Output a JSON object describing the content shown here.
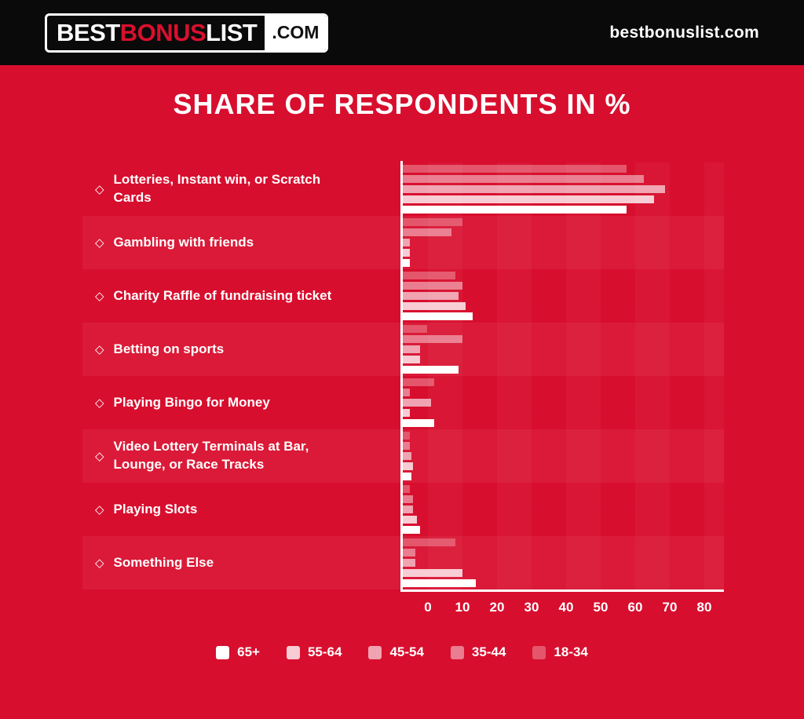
{
  "header": {
    "logo": {
      "part1": "BEST",
      "part2": "BONUS",
      "part3": "LIST",
      "suffix": ".COM"
    },
    "site_url": "bestbonuslist.com"
  },
  "title": "SHARE OF RESPONDENTS IN %",
  "bullet": "◇",
  "colors": {
    "background": "#d80e2e",
    "header_bg": "#0a0a0a",
    "accent_red": "#d8102e",
    "axis": "#ffffff",
    "row_band": "rgba(255,255,255,0.05)"
  },
  "chart_data": {
    "type": "bar",
    "orientation": "horizontal",
    "title": "SHARE OF RESPONDENTS IN %",
    "unit": "%",
    "categories": [
      "Lotteries, Instant win, or Scratch Cards",
      "Gambling with friends",
      "Charity Raffle of fundraising ticket",
      "Betting on sports",
      "Playing Bingo for Money",
      "Video Lottery Terminals at Bar, Lounge, or Race Tracks",
      "Playing Slots",
      "Something Else"
    ],
    "series": [
      {
        "name": "18-34",
        "color": "#e4566b",
        "values": [
          64,
          17,
          15,
          7,
          9,
          2,
          2,
          15
        ]
      },
      {
        "name": "35-44",
        "color": "#ea7d8f",
        "values": [
          69,
          14,
          17,
          17,
          2,
          2,
          3,
          3.5
        ]
      },
      {
        "name": "45-54",
        "color": "#f0a3b1",
        "values": [
          75,
          2,
          16,
          5,
          8,
          2.5,
          3,
          3.5
        ]
      },
      {
        "name": "55-64",
        "color": "#f7ccd4",
        "values": [
          72,
          2,
          18,
          5,
          2,
          3,
          4,
          17
        ]
      },
      {
        "name": "65+",
        "color": "#ffffff",
        "values": [
          64,
          2,
          20,
          16,
          9,
          2.5,
          5,
          21
        ]
      }
    ],
    "bar_row_order": [
      "18-34",
      "35-44",
      "45-54",
      "55-64",
      "65+"
    ],
    "x_ticks": [
      0,
      10,
      20,
      30,
      40,
      50,
      60,
      70,
      80
    ],
    "xlim": [
      0,
      92
    ],
    "grid": true,
    "legend_position": "bottom",
    "legend_order": [
      "65+",
      "55-64",
      "45-54",
      "35-44",
      "18-34"
    ]
  },
  "legend": {
    "items": [
      {
        "label": "65+",
        "color": "#ffffff"
      },
      {
        "label": "55-64",
        "color": "#f7ccd4"
      },
      {
        "label": "45-54",
        "color": "#f0a3b1"
      },
      {
        "label": "35-44",
        "color": "#ea7d8f"
      },
      {
        "label": "18-34",
        "color": "#e4566b"
      }
    ]
  }
}
